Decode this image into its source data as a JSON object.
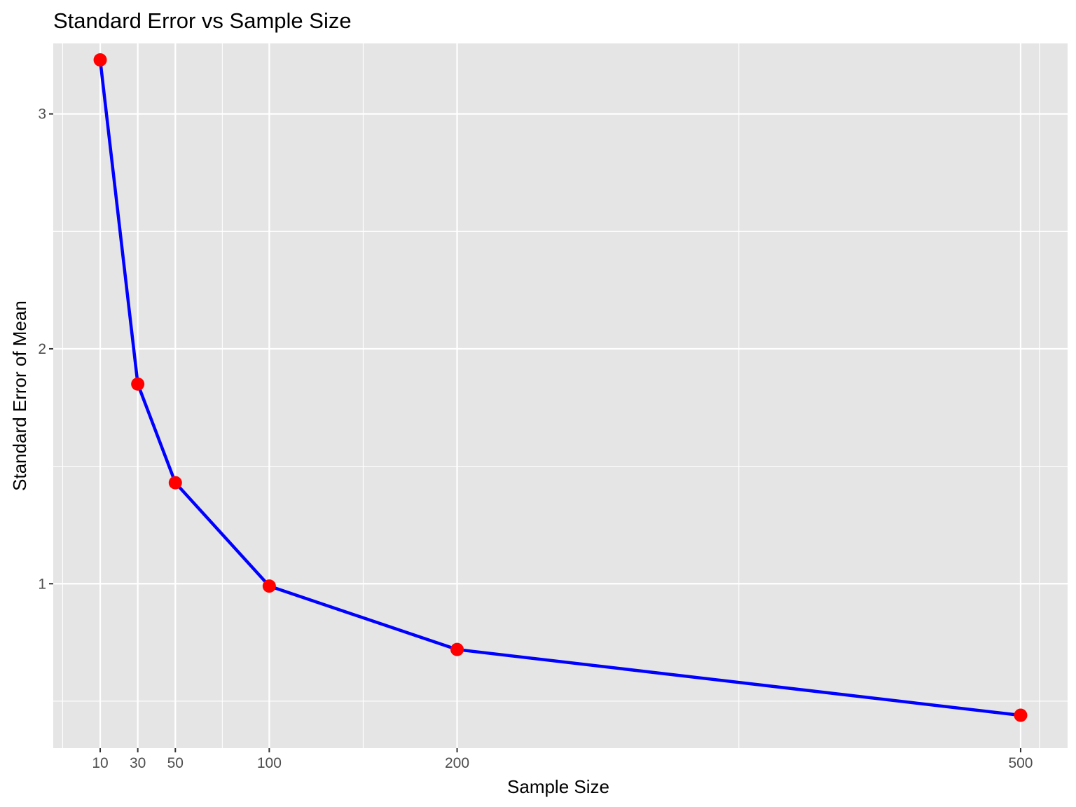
{
  "chart_data": {
    "type": "line",
    "title": "Standard Error vs Sample Size",
    "xlabel": "Sample Size",
    "ylabel": "Standard Error of Mean",
    "xlim": [
      -15,
      525
    ],
    "ylim": [
      0.3,
      3.3
    ],
    "x_ticks": [
      10,
      30,
      50,
      100,
      200,
      500
    ],
    "x_minor_gridlines": [
      -10,
      75,
      150,
      350,
      510
    ],
    "y_ticks": [
      1,
      2,
      3
    ],
    "y_minor_gridlines": [
      0.5,
      1.5,
      2.5
    ],
    "series": [
      {
        "x": [
          10,
          30,
          50,
          100,
          200,
          500
        ],
        "values": [
          3.23,
          1.85,
          1.43,
          0.99,
          0.72,
          0.44
        ]
      }
    ],
    "line_color": "#0000ff",
    "point_color": "#ff0000",
    "panel_background": "#e5e5e5",
    "grid_color": "#ffffff",
    "grid": true,
    "legend": "none"
  }
}
